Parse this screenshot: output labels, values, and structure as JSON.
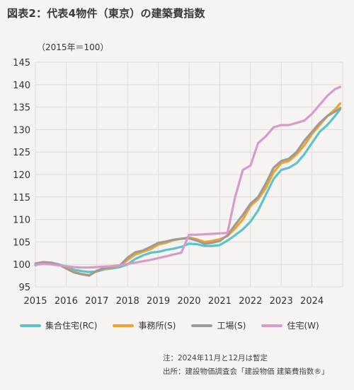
{
  "title": "図表2：代表4物件（東京）の建築費指数",
  "unit": "（2015年＝100）",
  "notes": {
    "line1": "注：2024年11月と12月は暫定",
    "line2": "出所：建設物価調査会「建設物価 建築費指数®」"
  },
  "chart_data": {
    "type": "line",
    "x_ticks": [
      "2015",
      "2016",
      "2017",
      "2018",
      "2019",
      "2020",
      "2021",
      "2022",
      "2023",
      "2024"
    ],
    "y_ticks": [
      "95",
      "100",
      "105",
      "110",
      "115",
      "120",
      "125",
      "130",
      "135",
      "140",
      "145"
    ],
    "ylim": [
      95,
      145
    ],
    "xlim": [
      2015.0,
      2025.0
    ],
    "grid": true,
    "legend_position": "bottom",
    "series": [
      {
        "name": "集合住宅(RC)",
        "color": "#5cc4c8",
        "x": [
          2015.0,
          2015.25,
          2015.5,
          2015.75,
          2016.0,
          2016.25,
          2016.5,
          2016.75,
          2017.0,
          2017.25,
          2017.5,
          2017.75,
          2018.0,
          2018.25,
          2018.5,
          2018.75,
          2019.0,
          2019.25,
          2019.5,
          2019.75,
          2020.0,
          2020.25,
          2020.5,
          2020.75,
          2021.0,
          2021.25,
          2021.5,
          2021.75,
          2022.0,
          2022.25,
          2022.5,
          2022.75,
          2023.0,
          2023.25,
          2023.5,
          2023.75,
          2024.0,
          2024.25,
          2024.5,
          2024.75,
          2024.92
        ],
        "y": [
          99.8,
          100.3,
          100.3,
          100.0,
          99.5,
          98.8,
          98.5,
          98.3,
          98.4,
          98.9,
          99.1,
          99.4,
          100.0,
          101.2,
          102.0,
          102.6,
          102.8,
          103.2,
          103.5,
          103.9,
          104.6,
          104.5,
          104.1,
          104.1,
          104.3,
          105.3,
          106.5,
          107.8,
          109.5,
          112.0,
          115.5,
          119.0,
          121.0,
          121.5,
          122.5,
          124.5,
          127.0,
          129.5,
          131.0,
          133.0,
          134.5
        ]
      },
      {
        "name": "事務所(S)",
        "color": "#f1a42c",
        "x": [
          2015.0,
          2015.25,
          2015.5,
          2015.75,
          2016.0,
          2016.25,
          2016.5,
          2016.75,
          2017.0,
          2017.25,
          2017.5,
          2017.75,
          2018.0,
          2018.25,
          2018.5,
          2018.75,
          2019.0,
          2019.25,
          2019.5,
          2019.75,
          2020.0,
          2020.25,
          2020.5,
          2020.75,
          2021.0,
          2021.25,
          2021.5,
          2021.75,
          2022.0,
          2022.25,
          2022.5,
          2022.75,
          2023.0,
          2023.25,
          2023.5,
          2023.75,
          2024.0,
          2024.25,
          2024.5,
          2024.75,
          2024.92
        ],
        "y": [
          100.0,
          100.2,
          100.1,
          99.9,
          99.3,
          98.3,
          97.9,
          97.6,
          98.5,
          99.1,
          99.3,
          99.7,
          101.0,
          102.2,
          102.8,
          103.4,
          104.4,
          104.8,
          105.4,
          105.7,
          106.0,
          105.6,
          105.0,
          105.2,
          105.6,
          106.3,
          108.0,
          110.0,
          113.0,
          114.5,
          117.0,
          120.5,
          122.5,
          123.0,
          124.5,
          126.5,
          129.0,
          131.0,
          133.0,
          134.5,
          135.8
        ]
      },
      {
        "name": "工場(S)",
        "color": "#9e9b97",
        "x": [
          2015.0,
          2015.25,
          2015.5,
          2015.75,
          2016.0,
          2016.25,
          2016.5,
          2016.75,
          2017.0,
          2017.25,
          2017.5,
          2017.75,
          2018.0,
          2018.25,
          2018.5,
          2018.75,
          2019.0,
          2019.25,
          2019.5,
          2019.75,
          2020.0,
          2020.25,
          2020.5,
          2020.75,
          2021.0,
          2021.25,
          2021.5,
          2021.75,
          2022.0,
          2022.25,
          2022.5,
          2022.75,
          2023.0,
          2023.25,
          2023.5,
          2023.75,
          2024.0,
          2024.25,
          2024.5,
          2024.75,
          2024.92
        ],
        "y": [
          100.2,
          100.5,
          100.4,
          100.0,
          99.1,
          98.2,
          97.8,
          97.5,
          98.6,
          99.2,
          99.4,
          99.8,
          101.5,
          102.7,
          103.1,
          103.9,
          104.8,
          105.1,
          105.5,
          105.7,
          105.8,
          105.3,
          104.6,
          104.8,
          105.2,
          106.5,
          108.8,
          111.0,
          113.5,
          115.0,
          118.0,
          121.5,
          123.0,
          123.5,
          125.0,
          127.5,
          129.5,
          131.5,
          133.0,
          134.0,
          134.8
        ]
      },
      {
        "name": "住宅(W)",
        "color": "#d89ac7",
        "x": [
          2015.0,
          2015.25,
          2015.5,
          2015.75,
          2016.0,
          2016.25,
          2016.5,
          2016.75,
          2017.0,
          2017.25,
          2017.5,
          2017.75,
          2018.0,
          2018.25,
          2018.5,
          2018.75,
          2019.0,
          2019.25,
          2019.5,
          2019.75,
          2020.0,
          2020.25,
          2020.5,
          2020.75,
          2021.0,
          2021.25,
          2021.5,
          2021.75,
          2022.0,
          2022.25,
          2022.5,
          2022.75,
          2023.0,
          2023.25,
          2023.5,
          2023.75,
          2024.0,
          2024.25,
          2024.5,
          2024.75,
          2024.92
        ],
        "y": [
          99.9,
          100.1,
          100.0,
          99.8,
          99.6,
          99.4,
          99.3,
          99.3,
          99.4,
          99.5,
          99.6,
          99.8,
          100.1,
          100.4,
          100.7,
          101.0,
          101.4,
          101.8,
          102.2,
          102.6,
          106.6,
          106.6,
          106.7,
          106.8,
          106.9,
          107.0,
          115.0,
          121.0,
          122.0,
          127.0,
          128.5,
          130.5,
          131.0,
          131.0,
          131.5,
          132.0,
          133.5,
          135.5,
          137.5,
          139.0,
          139.5
        ]
      }
    ]
  }
}
